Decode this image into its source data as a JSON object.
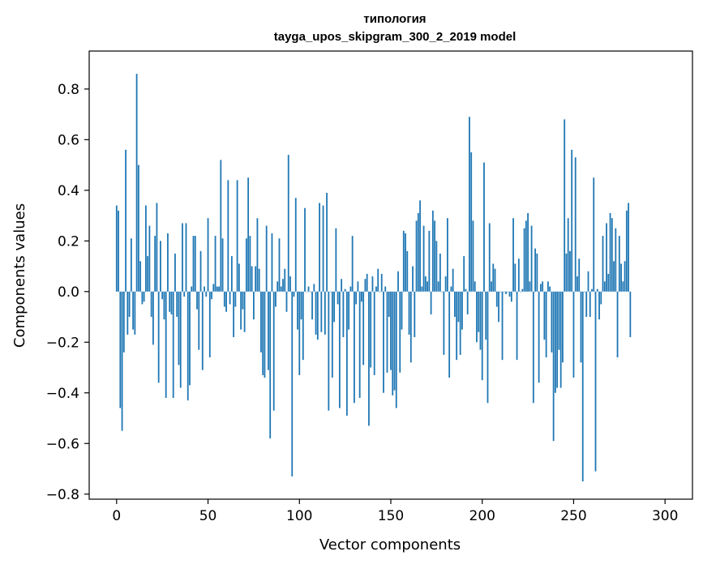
{
  "chart_data": {
    "type": "bar",
    "title": "типология",
    "subtitle": "tayga_upos_skipgram_300_2_2019 model",
    "xlabel": "Vector components",
    "ylabel": "Components values",
    "xlim": [
      -15,
      315
    ],
    "ylim": [
      -0.82,
      0.95
    ],
    "xticks": [
      0,
      50,
      100,
      150,
      200,
      250,
      300
    ],
    "xtick_labels": [
      "0",
      "50",
      "100",
      "150",
      "200",
      "250",
      "300"
    ],
    "yticks": [
      -0.8,
      -0.6,
      -0.4,
      -0.2,
      0.0,
      0.2,
      0.4,
      0.6,
      0.8
    ],
    "ytick_labels": [
      "−0.8",
      "−0.6",
      "−0.4",
      "−0.2",
      "0.0",
      "0.2",
      "0.4",
      "0.6",
      "0.8"
    ],
    "color": "#1f77b4",
    "values": [
      0.34,
      0.32,
      -0.46,
      -0.55,
      -0.24,
      0.56,
      -0.17,
      -0.1,
      0.21,
      -0.15,
      -0.17,
      0.86,
      0.5,
      0.12,
      -0.05,
      -0.04,
      0.34,
      0.14,
      0.26,
      -0.1,
      -0.21,
      0.22,
      0.35,
      -0.36,
      0.2,
      -0.03,
      -0.11,
      -0.42,
      0.23,
      -0.08,
      -0.09,
      -0.42,
      0.15,
      -0.1,
      -0.29,
      -0.38,
      0.27,
      -0.02,
      0.27,
      -0.43,
      -0.37,
      0.02,
      0.22,
      0.22,
      -0.07,
      -0.23,
      0.16,
      -0.31,
      0.02,
      -0.02,
      0.29,
      -0.26,
      -0.03,
      0.03,
      0.22,
      0.02,
      0.02,
      0.52,
      0.21,
      -0.06,
      -0.08,
      0.44,
      -0.05,
      0.14,
      -0.18,
      -0.06,
      0.44,
      0.11,
      -0.15,
      -0.07,
      -0.16,
      0.21,
      0.45,
      0.22,
      0.1,
      -0.11,
      0.1,
      0.29,
      0.09,
      -0.24,
      -0.33,
      -0.34,
      0.26,
      -0.31,
      -0.58,
      0.23,
      -0.47,
      -0.06,
      0.04,
      0.21,
      0.02,
      0.05,
      0.09,
      -0.08,
      0.54,
      0.06,
      -0.73,
      -0.02,
      0.37,
      -0.15,
      -0.33,
      -0.11,
      -0.27,
      0.33,
      0.0,
      0.02,
      0.0,
      -0.11,
      0.03,
      -0.17,
      -0.19,
      0.35,
      -0.16,
      0.34,
      -0.17,
      0.39,
      -0.47,
      0.0,
      -0.34,
      -0.12,
      0.25,
      -0.05,
      -0.46,
      0.05,
      -0.18,
      0.01,
      -0.49,
      -0.15,
      0.02,
      0.22,
      -0.44,
      -0.05,
      0.04,
      -0.42,
      -0.04,
      -0.29,
      0.05,
      0.07,
      -0.53,
      -0.3,
      0.06,
      -0.33,
      0.02,
      0.09,
      0.0,
      0.07,
      -0.4,
      0.02,
      -0.32,
      -0.1,
      -0.31,
      -0.41,
      -0.39,
      -0.46,
      0.08,
      -0.32,
      -0.15,
      0.24,
      0.23,
      0.16,
      -0.17,
      -0.28,
      0.1,
      -0.18,
      0.28,
      0.31,
      0.36,
      0.02,
      0.26,
      0.06,
      0.04,
      0.24,
      -0.09,
      0.32,
      0.28,
      0.2,
      0.04,
      0.15,
      0.0,
      -0.25,
      0.06,
      0.29,
      -0.34,
      0.02,
      0.09,
      -0.1,
      -0.27,
      -0.12,
      -0.25,
      -0.15,
      0.14,
      0.01,
      -0.09,
      0.69,
      0.55,
      0.28,
      0.04,
      -0.2,
      -0.16,
      -0.23,
      -0.35,
      0.51,
      -0.19,
      -0.44,
      0.27,
      0.04,
      0.11,
      0.09,
      -0.06,
      -0.12,
      0.0,
      -0.27,
      0.0,
      -0.01,
      0.0,
      -0.02,
      -0.04,
      0.29,
      0.11,
      -0.27,
      0.13,
      0.0,
      0.01,
      0.25,
      0.28,
      0.31,
      0.04,
      0.26,
      -0.44,
      0.17,
      0.15,
      -0.36,
      0.03,
      0.04,
      -0.19,
      -0.26,
      0.04,
      0.02,
      -0.24,
      -0.59,
      -0.4,
      -0.38,
      -0.23,
      -0.38,
      -0.28,
      0.68,
      0.15,
      0.29,
      0.16,
      0.56,
      -0.34,
      0.53,
      0.06,
      0.13,
      -0.28,
      -0.75,
      0.0,
      -0.1,
      0.08,
      -0.1,
      0.01,
      0.45,
      -0.71,
      0.01,
      -0.11,
      -0.05,
      0.22,
      0.04,
      0.27,
      0.07,
      0.31,
      0.29,
      0.12,
      0.25,
      -0.26,
      0.22,
      0.11,
      0.04,
      0.12,
      0.32,
      0.35,
      -0.18
    ]
  }
}
